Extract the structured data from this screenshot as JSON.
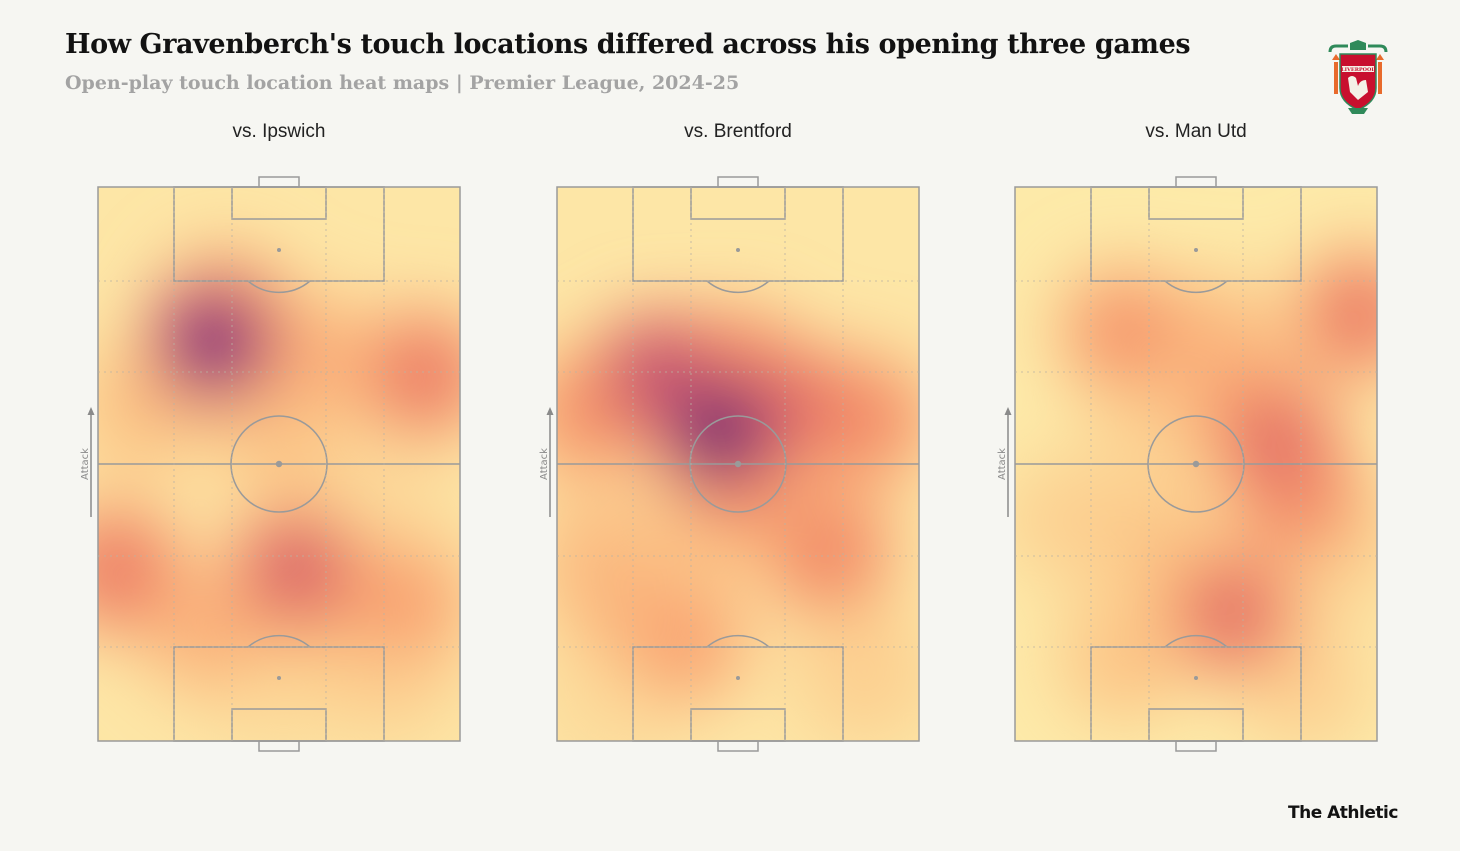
{
  "header": {
    "title": "How Gravenberch's touch locations differed across his opening three games",
    "subtitle": "Open-play touch location heat maps | Premier League, 2024-25"
  },
  "footer": {
    "brand": "The Athletic"
  },
  "logo": {
    "icon": "liverpool-crest-icon",
    "text": "LIVERPOOL"
  },
  "colors": {
    "background": "#f6f6f2",
    "pitch_lines": "#9a9a9a",
    "colormap": [
      "#fffbd9",
      "#fde9a8",
      "#fcc98a",
      "#f89f6f",
      "#ee7a62",
      "#d75d6a",
      "#b24278",
      "#7d2a86",
      "#4b1f80",
      "#1c0e36"
    ]
  },
  "chart_data": [
    {
      "type": "heatmap",
      "title": "vs. Ipswich",
      "axis_label": "Attack",
      "base_intensity": 0.2,
      "hotspots": [
        {
          "x": 0.32,
          "y": 0.72,
          "intensity": 0.9
        },
        {
          "x": 0.36,
          "y": 0.77,
          "intensity": 0.35
        },
        {
          "x": 0.6,
          "y": 0.69,
          "intensity": 0.3
        },
        {
          "x": 0.9,
          "y": 0.66,
          "intensity": 0.5
        },
        {
          "x": 0.12,
          "y": 0.6,
          "intensity": 0.25
        },
        {
          "x": 0.5,
          "y": 0.57,
          "intensity": 0.25
        },
        {
          "x": 0.05,
          "y": 0.31,
          "intensity": 0.5
        },
        {
          "x": 0.55,
          "y": 0.31,
          "intensity": 0.6
        },
        {
          "x": 0.6,
          "y": 0.23,
          "intensity": 0.25
        },
        {
          "x": 0.3,
          "y": 0.2,
          "intensity": 0.3
        },
        {
          "x": 0.85,
          "y": 0.25,
          "intensity": 0.35
        },
        {
          "x": 0.8,
          "y": 0.13,
          "intensity": 0.2
        },
        {
          "x": 0.5,
          "y": 0.1,
          "intensity": 0.15
        },
        {
          "x": 0.75,
          "y": 0.42,
          "intensity": 0.15
        }
      ]
    },
    {
      "type": "heatmap",
      "title": "vs. Brentford",
      "axis_label": "Attack",
      "base_intensity": 0.2,
      "hotspots": [
        {
          "x": 0.45,
          "y": 0.56,
          "intensity": 0.95
        },
        {
          "x": 0.28,
          "y": 0.66,
          "intensity": 0.7
        },
        {
          "x": 0.5,
          "y": 0.66,
          "intensity": 0.5
        },
        {
          "x": 0.65,
          "y": 0.6,
          "intensity": 0.55
        },
        {
          "x": 0.85,
          "y": 0.58,
          "intensity": 0.45
        },
        {
          "x": 0.08,
          "y": 0.59,
          "intensity": 0.4
        },
        {
          "x": 0.5,
          "y": 0.46,
          "intensity": 0.4
        },
        {
          "x": 0.4,
          "y": 0.4,
          "intensity": 0.2
        },
        {
          "x": 0.75,
          "y": 0.34,
          "intensity": 0.45
        },
        {
          "x": 0.12,
          "y": 0.32,
          "intensity": 0.3
        },
        {
          "x": 0.2,
          "y": 0.25,
          "intensity": 0.3
        },
        {
          "x": 0.35,
          "y": 0.18,
          "intensity": 0.35
        },
        {
          "x": 0.15,
          "y": 0.08,
          "intensity": 0.15
        },
        {
          "x": 0.85,
          "y": 0.12,
          "intensity": 0.2
        }
      ]
    },
    {
      "type": "heatmap",
      "title": "vs. Man Utd",
      "axis_label": "Attack",
      "base_intensity": 0.18,
      "hotspots": [
        {
          "x": 0.72,
          "y": 0.54,
          "intensity": 0.55
        },
        {
          "x": 0.78,
          "y": 0.45,
          "intensity": 0.5
        },
        {
          "x": 0.62,
          "y": 0.62,
          "intensity": 0.35
        },
        {
          "x": 0.3,
          "y": 0.74,
          "intensity": 0.4
        },
        {
          "x": 0.55,
          "y": 0.72,
          "intensity": 0.3
        },
        {
          "x": 0.95,
          "y": 0.77,
          "intensity": 0.5
        },
        {
          "x": 0.4,
          "y": 0.58,
          "intensity": 0.2
        },
        {
          "x": 0.6,
          "y": 0.23,
          "intensity": 0.55
        },
        {
          "x": 0.4,
          "y": 0.35,
          "intensity": 0.25
        },
        {
          "x": 0.15,
          "y": 0.4,
          "intensity": 0.2
        },
        {
          "x": 0.9,
          "y": 0.35,
          "intensity": 0.2
        },
        {
          "x": 0.3,
          "y": 0.15,
          "intensity": 0.25
        },
        {
          "x": 0.8,
          "y": 0.1,
          "intensity": 0.2
        }
      ]
    }
  ]
}
